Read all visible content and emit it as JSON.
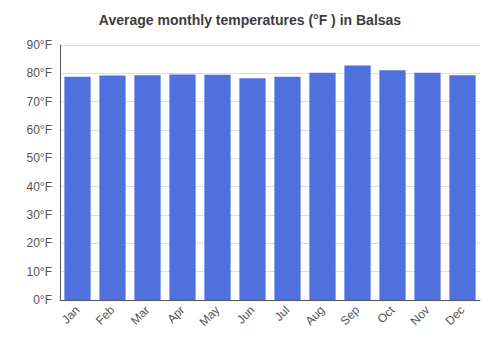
{
  "chart_data": {
    "type": "bar",
    "title": "Average monthly temperatures (°F ) in Balsas",
    "categories": [
      "Jan",
      "Feb",
      "Mar",
      "Apr",
      "May",
      "Jun",
      "Jul",
      "Aug",
      "Sep",
      "Oct",
      "Nov",
      "Dec"
    ],
    "values": [
      78.8,
      79.2,
      79.3,
      79.6,
      79.5,
      78.3,
      78.8,
      80.2,
      82.8,
      81.1,
      80.2,
      79.3
    ],
    "ylim": [
      0,
      90
    ],
    "yticks": [
      {
        "value": 0,
        "label": "0°F"
      },
      {
        "value": 10,
        "label": "10°F"
      },
      {
        "value": 20,
        "label": "20°F"
      },
      {
        "value": 30,
        "label": "30°F"
      },
      {
        "value": 40,
        "label": "40°F"
      },
      {
        "value": 50,
        "label": "50°F"
      },
      {
        "value": 60,
        "label": "60°F"
      },
      {
        "value": 70,
        "label": "70°F"
      },
      {
        "value": 80,
        "label": "80°F"
      },
      {
        "value": 90,
        "label": "90°F"
      }
    ],
    "grid": true
  }
}
